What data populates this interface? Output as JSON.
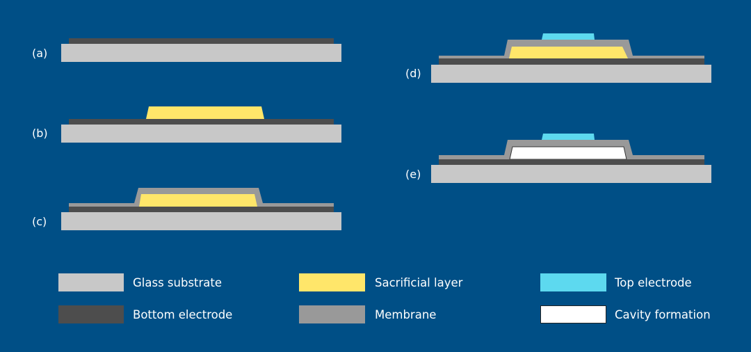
{
  "steps": [
    {
      "label": "(a)"
    },
    {
      "label": "(b)"
    },
    {
      "label": "(c)"
    },
    {
      "label": "(d)"
    },
    {
      "label": "(e)"
    }
  ],
  "legend": [
    {
      "label": "Glass substrate",
      "color": "#c8c8c8"
    },
    {
      "label": "Sacrificial layer",
      "color": "#ffe66a"
    },
    {
      "label": "Top electrode",
      "color": "#5dd9ef"
    },
    {
      "label": "Bottom electrode",
      "color": "#4d4d4d"
    },
    {
      "label": "Membrane",
      "color": "#999999"
    },
    {
      "label": "Cavity formation",
      "color": "#ffffff"
    }
  ],
  "background": "#004f86"
}
